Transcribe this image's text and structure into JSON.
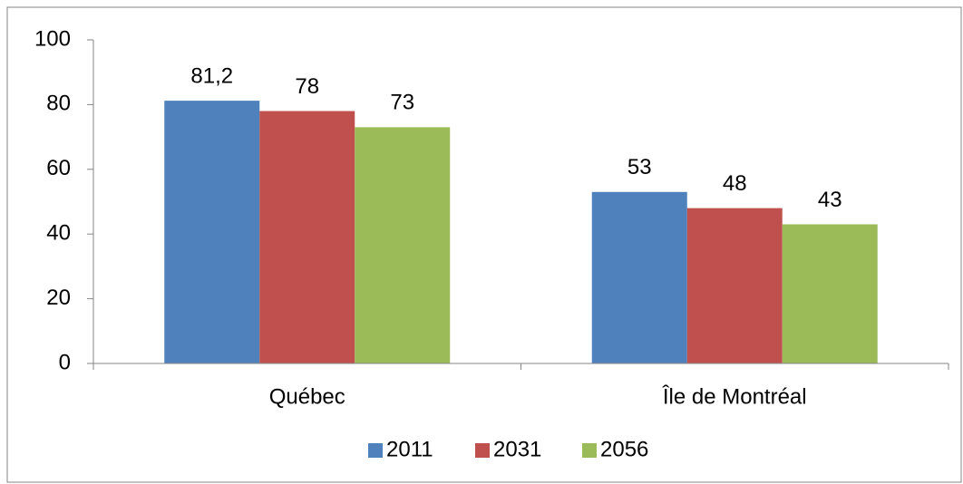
{
  "chart_data": {
    "type": "bar",
    "categories": [
      "Québec",
      "Île de Montréal"
    ],
    "series": [
      {
        "name": "2011",
        "color": "#4f81bd",
        "values": [
          81.2,
          53
        ],
        "value_labels": [
          "81,2",
          "53"
        ]
      },
      {
        "name": "2031",
        "color": "#c0504d",
        "values": [
          78,
          48
        ]
      },
      {
        "name": "2056",
        "color": "#9bbb59",
        "values": [
          73,
          43
        ]
      }
    ],
    "ylim": [
      0,
      100
    ],
    "yticks": [
      0,
      20,
      40,
      60,
      80,
      100
    ],
    "grid": false,
    "legend": "bottom"
  }
}
